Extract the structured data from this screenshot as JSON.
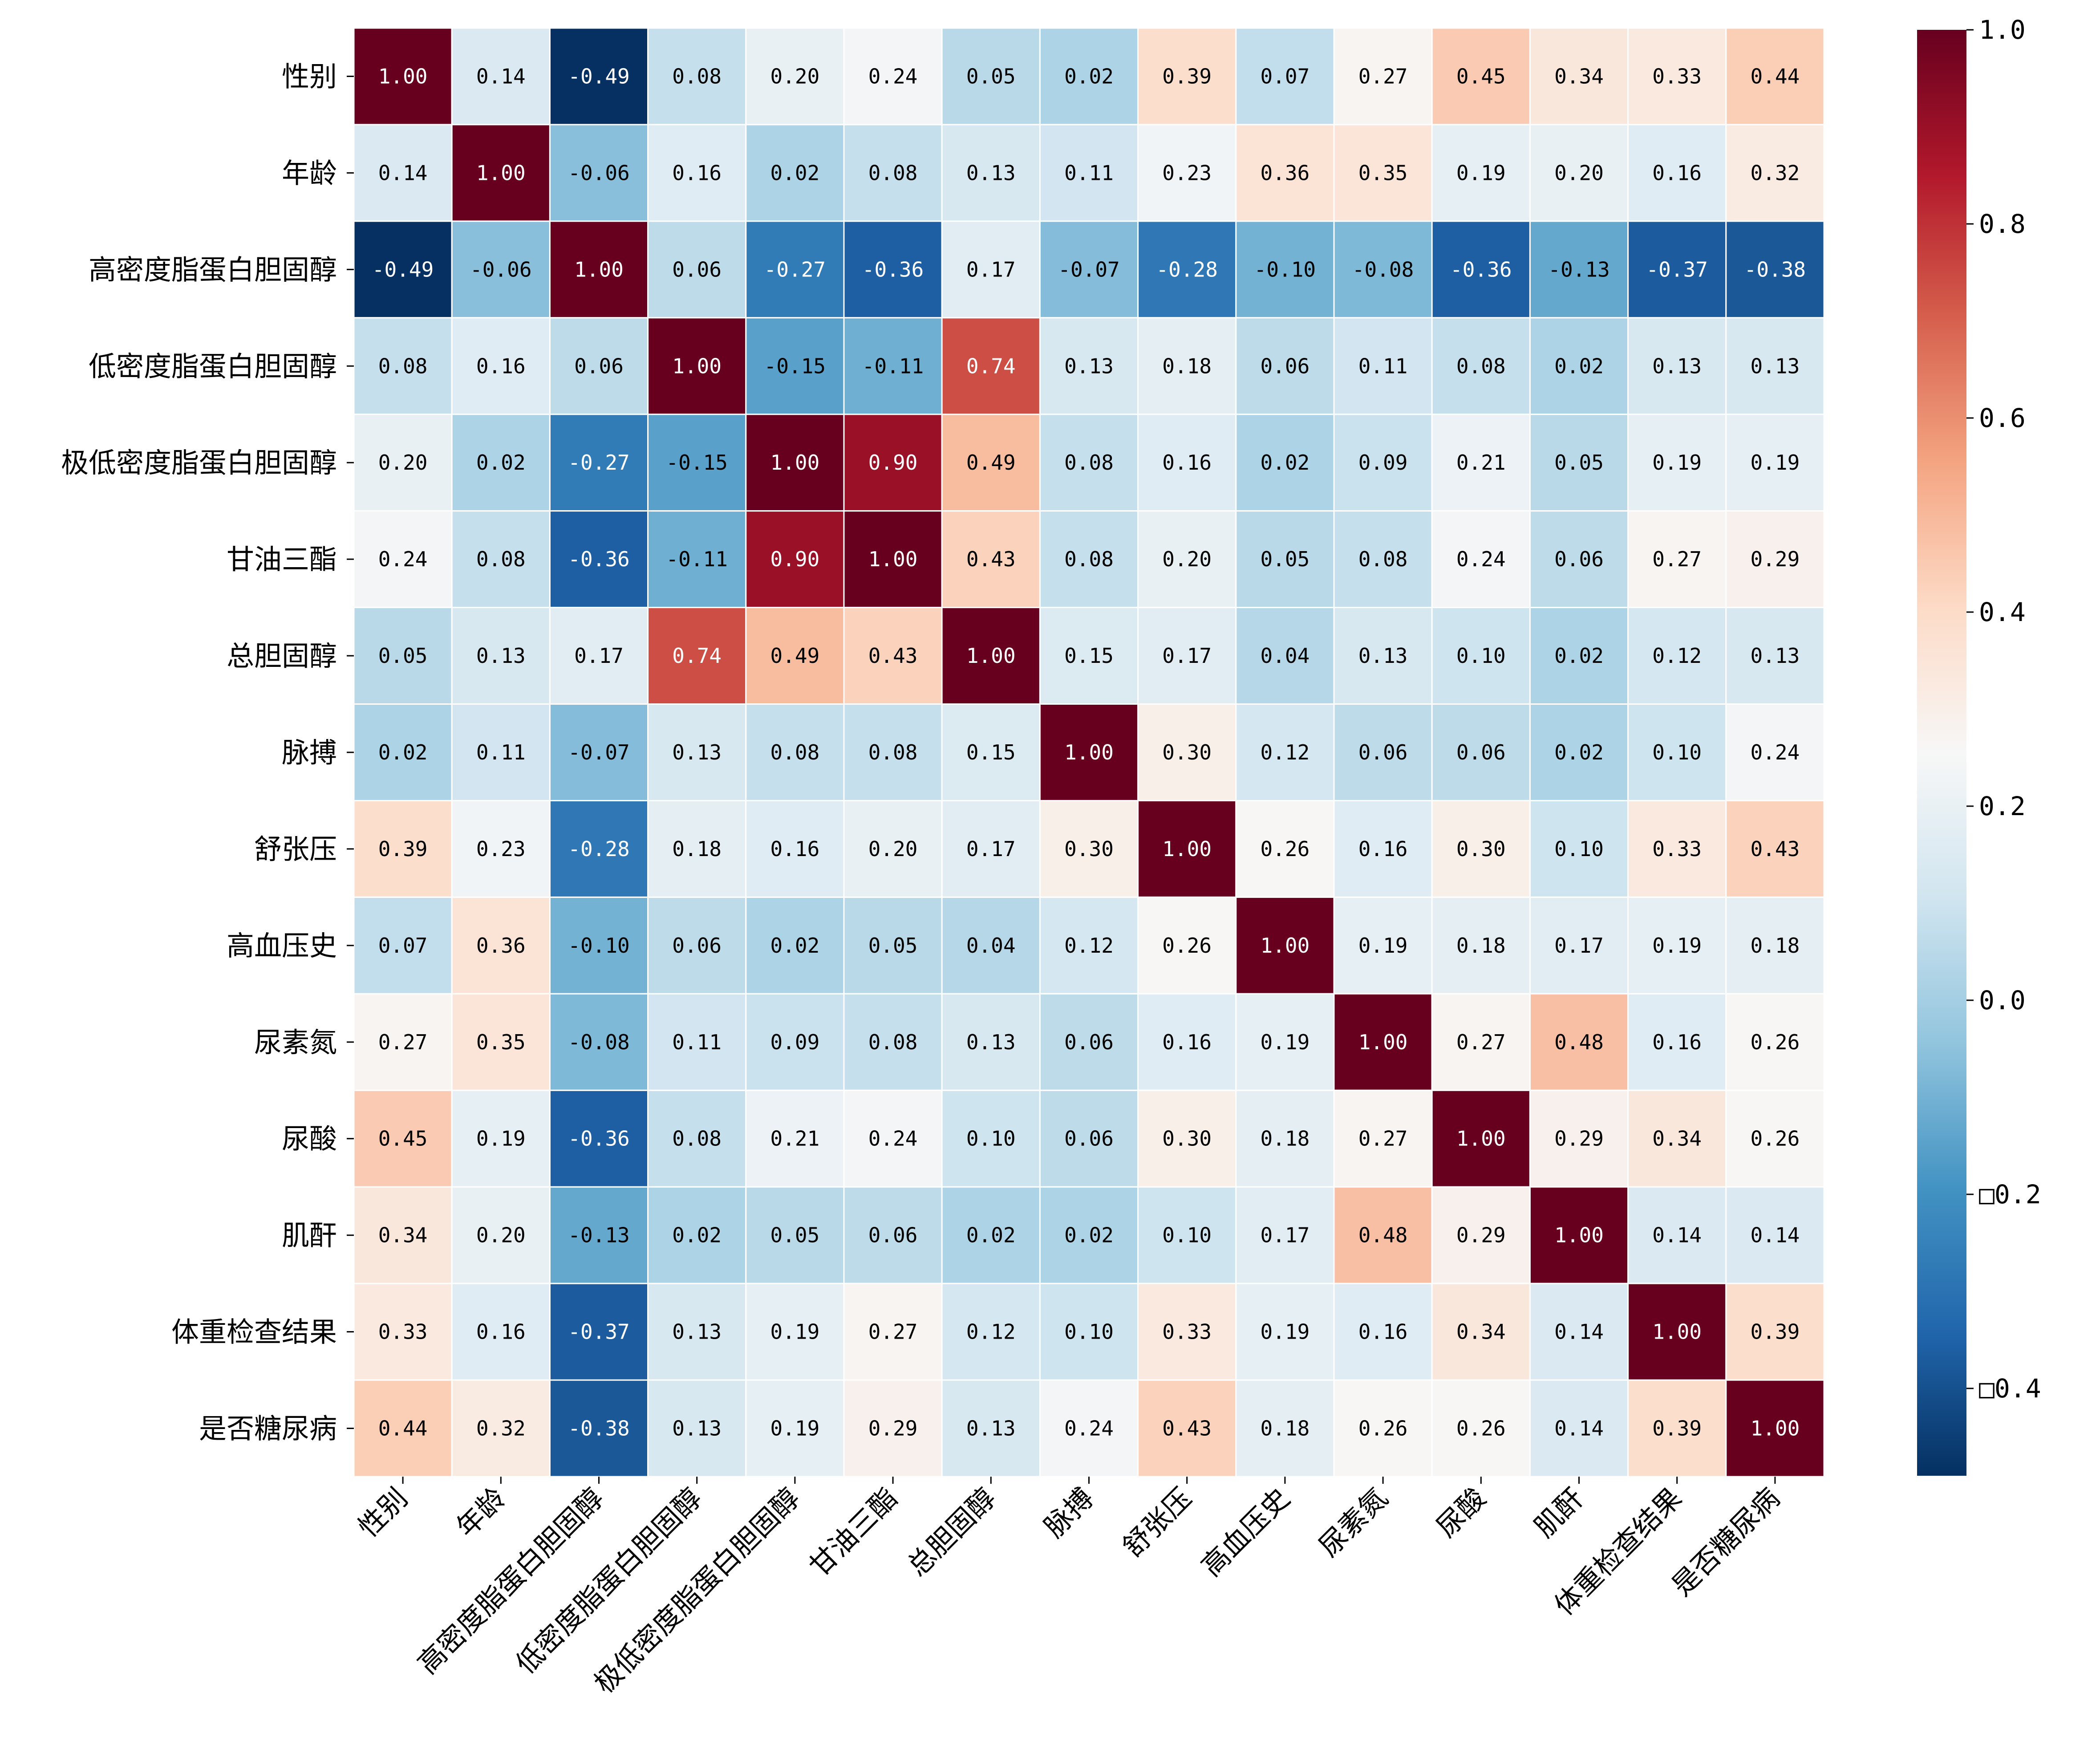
{
  "chart_data": {
    "type": "heatmap",
    "title": "",
    "xlabel": "",
    "ylabel": "",
    "colormap": "RdBu_r",
    "vmin": -0.49,
    "vmax": 1.0,
    "value_format": "0.00",
    "labels": [
      "性别",
      "年龄",
      "高密度脂蛋白胆固醇",
      "低密度脂蛋白胆固醇",
      "极低密度脂蛋白胆固醇",
      "甘油三酯",
      "总胆固醇",
      "脉搏",
      "舒张压",
      "高血压史",
      "尿素氮",
      "尿酸",
      "肌酐",
      "体重检查结果",
      "是否糖尿病"
    ],
    "matrix": [
      [
        1.0,
        0.14,
        -0.49,
        0.08,
        0.2,
        0.24,
        0.05,
        0.02,
        0.39,
        0.07,
        0.27,
        0.45,
        0.34,
        0.33,
        0.44
      ],
      [
        0.14,
        1.0,
        -0.06,
        0.16,
        0.02,
        0.08,
        0.13,
        0.11,
        0.23,
        0.36,
        0.35,
        0.19,
        0.2,
        0.16,
        0.32
      ],
      [
        -0.49,
        -0.06,
        1.0,
        0.06,
        -0.27,
        -0.36,
        0.17,
        -0.07,
        -0.28,
        -0.1,
        -0.08,
        -0.36,
        -0.13,
        -0.37,
        -0.38
      ],
      [
        0.08,
        0.16,
        0.06,
        1.0,
        -0.15,
        -0.11,
        0.74,
        0.13,
        0.18,
        0.06,
        0.11,
        0.08,
        0.02,
        0.13,
        0.13
      ],
      [
        0.2,
        0.02,
        -0.27,
        -0.15,
        1.0,
        0.9,
        0.49,
        0.08,
        0.16,
        0.02,
        0.09,
        0.21,
        0.05,
        0.19,
        0.19
      ],
      [
        0.24,
        0.08,
        -0.36,
        -0.11,
        0.9,
        1.0,
        0.43,
        0.08,
        0.2,
        0.05,
        0.08,
        0.24,
        0.06,
        0.27,
        0.29
      ],
      [
        0.05,
        0.13,
        0.17,
        0.74,
        0.49,
        0.43,
        1.0,
        0.15,
        0.17,
        0.04,
        0.13,
        0.1,
        0.02,
        0.12,
        0.13
      ],
      [
        0.02,
        0.11,
        -0.07,
        0.13,
        0.08,
        0.08,
        0.15,
        1.0,
        0.3,
        0.12,
        0.06,
        0.06,
        0.02,
        0.1,
        0.24
      ],
      [
        0.39,
        0.23,
        -0.28,
        0.18,
        0.16,
        0.2,
        0.17,
        0.3,
        1.0,
        0.26,
        0.16,
        0.3,
        0.1,
        0.33,
        0.43
      ],
      [
        0.07,
        0.36,
        -0.1,
        0.06,
        0.02,
        0.05,
        0.04,
        0.12,
        0.26,
        1.0,
        0.19,
        0.18,
        0.17,
        0.19,
        0.18
      ],
      [
        0.27,
        0.35,
        -0.08,
        0.11,
        0.09,
        0.08,
        0.13,
        0.06,
        0.16,
        0.19,
        1.0,
        0.27,
        0.48,
        0.16,
        0.26
      ],
      [
        0.45,
        0.19,
        -0.36,
        0.08,
        0.21,
        0.24,
        0.1,
        0.06,
        0.3,
        0.18,
        0.27,
        1.0,
        0.29,
        0.34,
        0.26
      ],
      [
        0.34,
        0.2,
        -0.13,
        0.02,
        0.05,
        0.06,
        0.02,
        0.02,
        0.1,
        0.17,
        0.48,
        0.29,
        1.0,
        0.14,
        0.14
      ],
      [
        0.33,
        0.16,
        -0.37,
        0.13,
        0.19,
        0.27,
        0.12,
        0.1,
        0.33,
        0.19,
        0.16,
        0.34,
        0.14,
        1.0,
        0.39
      ],
      [
        0.44,
        0.32,
        -0.38,
        0.13,
        0.19,
        0.29,
        0.13,
        0.24,
        0.43,
        0.18,
        0.26,
        0.26,
        0.14,
        0.39,
        1.0
      ]
    ],
    "colorbar": {
      "ticks": [
        1.0,
        0.8,
        0.6,
        0.4,
        0.2,
        0.0,
        -0.2,
        -0.4
      ],
      "tick_labels": [
        "1.0",
        "0.8",
        "0.6",
        "0.4",
        "0.2",
        "0.0",
        "□0.2",
        "□0.4"
      ],
      "colors": {
        "low": "#053061",
        "mid": "#f7f7f7",
        "high": "#67001f"
      }
    }
  }
}
